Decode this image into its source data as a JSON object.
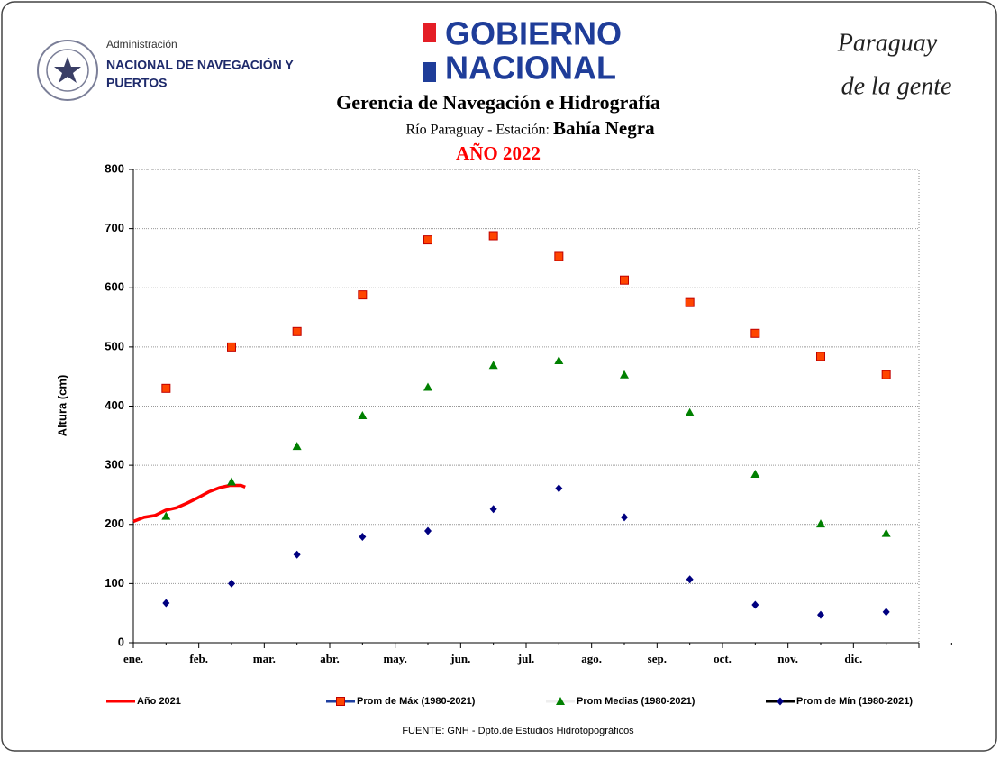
{
  "header": {
    "agency_line1": "Administración",
    "agency_line2": "NACIONAL DE NAVEGACIÓN Y",
    "agency_line3": "PUERTOS",
    "gov_line1": "GOBIERNO",
    "gov_line2": "NACIONAL",
    "slogan_line1": "Paraguay",
    "slogan_line2": "de la gente"
  },
  "chart_data": {
    "type": "scatter",
    "title": "Gerencia de Navegación e Hidrografía",
    "subtitle": "Río Paraguay  -  Estación:",
    "station": "Bahía Negra",
    "year_label": "AÑO 2022",
    "y_label": "Altura (cm)",
    "categories": [
      "ene.",
      "feb.",
      "mar.",
      "abr.",
      "may.",
      "jun.",
      "jul.",
      "ago.",
      "sep.",
      "oct.",
      "nov.",
      "dic."
    ],
    "ylim": [
      0,
      800
    ],
    "yticks": [
      0,
      100,
      200,
      300,
      400,
      500,
      600,
      700,
      800
    ],
    "grid": true,
    "series": [
      {
        "name": "Año 2021",
        "color": "#ff0000",
        "marker": "line",
        "legend_line_color": "#ff0000",
        "x": [
          0,
          5,
          10,
          15,
          20,
          25,
          30,
          35,
          40,
          45,
          50,
          52
        ],
        "values": [
          205,
          212,
          215,
          224,
          228,
          236,
          245,
          255,
          262,
          266,
          266,
          263
        ]
      },
      {
        "name": "Prom de Máx (1980-2021)",
        "color": "#ff4500",
        "marker": "square",
        "legend_line_color": "#1f3fa0",
        "values": [
          430,
          500,
          526,
          588,
          681,
          688,
          653,
          613,
          575,
          523,
          484,
          453
        ]
      },
      {
        "name": "Prom Medias (1980-2021)",
        "color": "#008000",
        "marker": "triangle",
        "legend_line_color": "#eeeeee",
        "values": [
          214,
          272,
          332,
          384,
          432,
          469,
          477,
          453,
          389,
          285,
          201,
          185
        ]
      },
      {
        "name": "Prom de Mín  (1980-2021)",
        "color": "#000080",
        "marker": "diamond",
        "legend_line_color": "#000000",
        "values": [
          67,
          100,
          149,
          179,
          189,
          226,
          261,
          212,
          107,
          64,
          47,
          52
        ]
      }
    ]
  },
  "source": "FUENTE:  GNH  - Dpto.de Estudios Hidrotopográficos"
}
